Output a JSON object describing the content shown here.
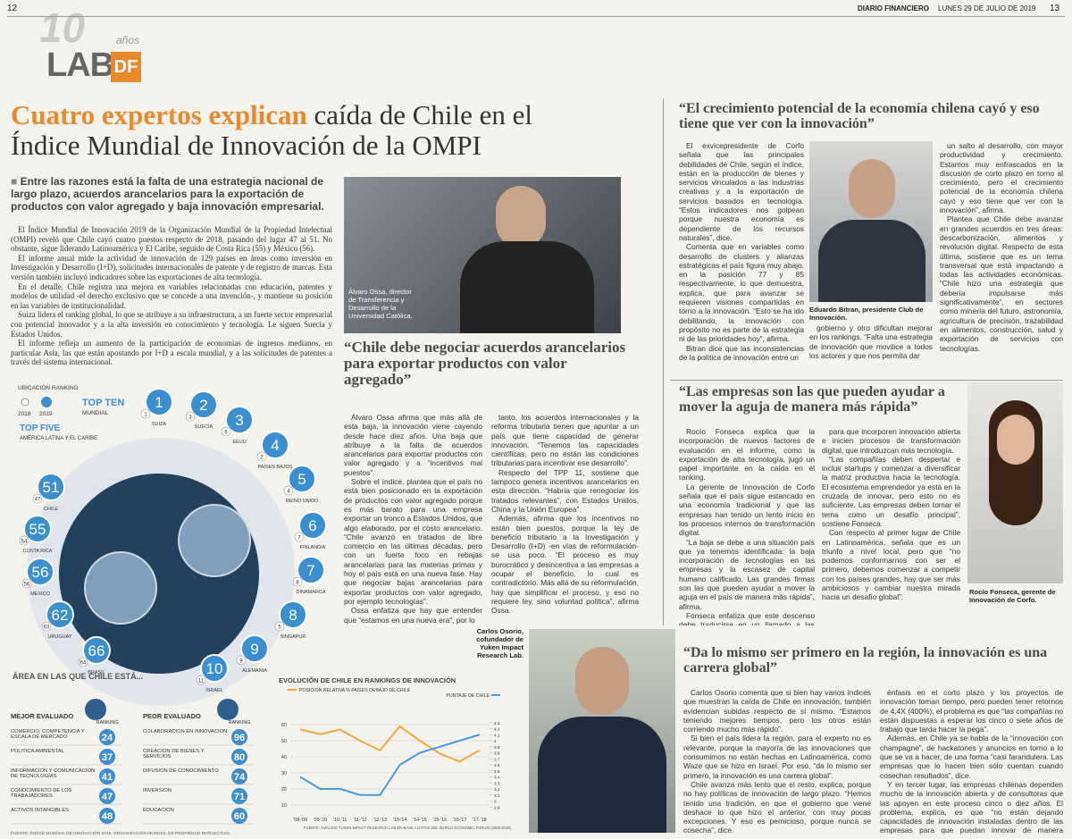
{
  "header": {
    "page_left": "12",
    "logo_years": "10",
    "logo_years_word": "años",
    "logo_lab": "LAB",
    "logo_df": "DF",
    "paper": "DIARIO FINANCIERO",
    "date": "LUNES 29 DE JULIO DE 2019",
    "page_right": "13"
  },
  "main": {
    "title_accent": "Cuatro expertos explican",
    "title_rest": "caída de Chile en el Índice Mundial de Innovación de la OMPI",
    "lead": "Entre las razones está la falta de una estrategia nacional de largo plazo, acuerdos arancelarios para la exportación de productos con valor agregado y baja innovación empresarial.",
    "body": [
      "El Índice Mundial de Innovación 2019 de la Organización Mundial de la Propiedad Intelectual (OMPI) reveló que Chile cayó cuatro puestos respecto de 2018, pasando del lugar 47 al 51. No obstante, sigue liderando Latinoamérica y El Caribe, seguido de Costa Rica (55) y México (56).",
      "El informe anual mide la actividad de innovación de 129 países en áreas como inversión en Investigación y Desarrollo (I+D), solicitudes internacionales de patente y de registro de marcas. Esta versión también incluyó indicadores sobre las exportaciones de alta tecnología.",
      "En el detalle, Chile registra una mejora en variables relacionadas con educación, patentes y modelos de utilidad -el derecho exclusivo que se concede a una invención-, y mantiene su posición en las variables de institucionalidad.",
      "Suiza lidera el ranking global, lo que se atribuye a su infraestructura, a un fuerte sector empresarial con potencial innovador y a la alta inversión en conocimiento y tecnología. Le siguen Suecia y Estados Unidos.",
      "El informe refleja un aumento de la participación de economías de ingresos medianos, en particular Asia, las que están apostando por I+D a escala mundial, y a las solicitudes de patentes a través del sistema internacional."
    ]
  },
  "ossa": {
    "caption": "Álvaro Ossa, director de Transferencia y Desarrollo de la Universidad Católica.",
    "quote": "“Chile debe negociar acuerdos arancelarios para exportar productos con valor agregado”",
    "col1": [
      "Álvaro Ossa afirma que más allá de esta baja, la innovación viene cayendo desde hace diez años. Una baja que atribuye a la falta de acuerdos arancelarios para exportar productos con valor agregado y a “incentivos mal puestos”.",
      "Sobre el índice, plantea que el país no está bien posicionado en la exportación de productos con valor agregado porque es más barato para una empresa exportar un tronco a Estados Unidos, que algo elaborado, por el costo arancelario. “Chile avanzó en tratados de libre comercio en las últimas décadas, pero con un fuerte foco en rebajas arancelarias para las materias primas y hoy el país está en una nueva fase. Hay que negociar bajas arancelarias para exportar productos con valor agregado, por ejemplo tecnologías”.",
      "Ossa enfatiza que hay que entender que “estamos en una nueva era”, por lo"
    ],
    "col2": [
      "tanto, los acuerdos internacionales y la reforma tributaria tienen que apuntar a un país que tiene capacidad de generar innovación. “Tenemos las capacidades científicas, pero no están las condiciones tributarias para incentivar ese desarrollo”.",
      "Respecto del TPP 11, sostiene que tampoco genera incentivos arancelarios en esta dirección. “Habría que renegociar los tratados relevantes”, con Estados Unidos, China y la Unión Europea”.",
      "Además, afirma que los incentivos no están bien puestos, porque la ley de beneficio tributario a la Investigación y Desarrollo (I+D) -en vías de reformulación- se usa poco. “El proceso es muy burocrático y desincentiva a las empresas a ocupar el beneficio, lo cual es contradictorio. Más allá de su reformulación, hay que simplificar el proceso, y eso no requiere ley, sino voluntad política”, afirma Ossa."
    ]
  },
  "bitran": {
    "quote": "“El crecimiento potencial de la economía chilena cayó y eso tiene que ver con la innovación”",
    "caption": "Eduardo Bitran, presidente Club de Innovación.",
    "col1": [
      "El exvicepresidente de Corfo señala que las principales debilidades de Chile, según el índice, están en la producción de bienes y servicios vinculados a las industrias creativas y a la exportación de servicios basados en tecnología. “Estos indicadores nos golpean porque nuestra economía es dependiente de los recursos naturales”, dice.",
      "Comenta que en variables como desarrollo de clusters y alianzas estratégicas el país figura muy abajo, en la posición 77 y 85 respectivamente, lo que demuestra, explica, que para avanzar se requieren visiones compartidas en torno a la innovación. “Esto se ha ido debilitando, la innovación con propósito no es parte de la estrategia ni de las prioridades hoy”, afirma.",
      "Bitran dice que las inconsistencias de la política de innovación entre un"
    ],
    "col2": [
      "gobierno y otro dificultan mejorar en los rankings. “Falta una estrategia de innovación que movilice a todos los actores y que nos permita dar"
    ],
    "col3": [
      "un salto al desarrollo, con mayor productividad y crecimiento. Estamos muy enfrascados en la discusión de corto plazo en torno al crecimiento, pero el crecimiento potencial de la economía chilena cayó y eso tiene que ver con la innovación”, afirma.",
      "Plantea que Chile debe avanzar en grandes acuerdos en tres áreas: descarbonización, alimentos y revolución digital. Respecto de esta última, sostiene que es un tema transversal que está impactando a todas las actividades económicas. “Chile hizo una estrategia que debería impulsarse más significativamente”, en sectores como minería del futuro, astronomía, agricultura de precisión, trazabilidad en alimentos, construcción, salud y exportación de servicios con tecnologías."
    ]
  },
  "fonseca": {
    "quote": "“Las empresas son las que pueden ayudar a mover la aguja de manera más rápida”",
    "caption": "Rocío Fonseca, gerente de Innovación de Corfo.",
    "col1": [
      "Rocío Fonseca explica que la incorporación de nuevos factores de evaluación en el informe, como la exportación de alta tecnología, jugó un papel importante en la caída en el ranking.",
      "La gerente de Innovación de Corfo señala que el país sigue estancado en una economía tradicional y que las empresas han tenido un lento inicio en los procesos internos de transformación digital.",
      "“La baja se debe a una situación país que ya tenemos identificada: la baja incorporación de tecnologías en las empresas y la escasez de capital humano calificado. Las grandes firmas son las que pueden ayudar a mover la aguja en el país de manera más rápida”, afirma.",
      "Fonseca enfatiza que este descenso debe traducirse en un llamado a las empresas"
    ],
    "col2": [
      "para que incorporen innovación abierta e inicien procesos de transformación digital, que introduzcan más tecnología.",
      "“Las compañías deben despertar e incluir startups y comenzar a diversificar la matriz productiva hacia la tecnología. El ecosistema emprendedor ya está en la cruzada de innovar, pero esto no es suficiente. Las empresas deben tomar el tema como un desafío principal”, sostiene Fonseca.",
      "Con respecto al primer lugar de Chile en Latinoamérica, señala que es un triunfo a nivel local, pero que “no podemos conformarnos con ser el primero, debemos comenzar a competir con los países grandes, hay que ser más ambiciosos y cambiar nuestra mirada hacia un desafío global”."
    ]
  },
  "osorio": {
    "quote": "“Da lo mismo ser primero en la región, la innovación es una carrera global”",
    "caption": "Carlos Osorio, cofundador de Yuken Impact Research Lab.",
    "col1": [
      "Carlos Osorio comenta que si bien hay varios índices que muestran la caída de Chile en innovación, también evidencian subidas respecto de sí mismo. “Estamos teniendo mejores tiempos, pero los otros están corriendo mucho más rápido”.",
      "Si bien el país lidera la región, para el experto no es relevante, porque la mayoría de las innovaciones que consumimos no están hechas en Latinoamérica, como Waze que se hizo en Israel. Por eso, “da lo mismo ser primero, la innovación es una carrera global”.",
      "Chile avanza más lento que el resto, explica, porque no hay políticas de innovación de largo plazo. “Hemos tenido una tradición, en que el gobierno que viene deshace lo que hizo el anterior, con muy pocas excepciones. Y eso es pernicioso, porque nunca se cosecha”, dice.",
      "En segundo lugar, afirma que las empresas ponen demasiado"
    ],
    "col2": [
      "énfasis en el corto plazo y los proyectos de innovación toman tiempo, pero pueden tener retornos de 4,4X (400%), el problema es que “las compañías no están dispuestas a esperar los cinco o siete años de trabajo que tarda hacer la pega”.",
      "Además, en Chile ya se habla de la “innovación con champagne”, de hackatones y anuncios en torno a lo que se va a hacer, de una forma “casi farandulera. Las empresas que lo hacen bien sólo cuentan cuando cosechan resultados”, dice.",
      "Y en tercer lugar, las empresas chilenas dependen mucho de la innovación abierta y de consultoras que las apoyen en este proceso cinco o diez años. El problema, explica, es que “no están dejando capacidades de innovación instaladas dentro de las empresas para que puedan innovar de manera autónoma”, afirma Osorio."
    ]
  },
  "infographic": {
    "legend_title": "UBICACIÓN RANKING",
    "legend_2018": "2018",
    "legend_2019": "2019",
    "top_ten_title": "TOP TEN",
    "top_ten_subtitle": "MUNDIAL",
    "latam_title": "TOP FIVE",
    "latam_subtitle": "AMÉRICA LATINA Y EL CARIBE",
    "top_ten": [
      {
        "country": "SUIZA",
        "rank_2019": 1,
        "rank_2018": 1
      },
      {
        "country": "SUECIA",
        "rank_2019": 2,
        "rank_2018": 3
      },
      {
        "country": "EEUU",
        "rank_2019": 3,
        "rank_2018": 6
      },
      {
        "country": "PAÍSES BAJOS",
        "rank_2019": 4,
        "rank_2018": 2
      },
      {
        "country": "REINO UNIDO",
        "rank_2019": 5,
        "rank_2018": 4
      },
      {
        "country": "FINLANDIA",
        "rank_2019": 6,
        "rank_2018": 7
      },
      {
        "country": "DINAMARCA",
        "rank_2019": 7,
        "rank_2018": 8
      },
      {
        "country": "SINGAPUR",
        "rank_2019": 8,
        "rank_2018": 5
      },
      {
        "country": "ALEMANIA",
        "rank_2019": 9,
        "rank_2018": 9
      },
      {
        "country": "ISRAEL",
        "rank_2019": 10,
        "rank_2018": 11
      }
    ],
    "latam": [
      {
        "country": "CHILE",
        "rank_2019": 51,
        "rank_2018": 47
      },
      {
        "country": "COSTA RICA",
        "rank_2019": 55,
        "rank_2018": 54
      },
      {
        "country": "MÉXICO",
        "rank_2019": 56,
        "rank_2018": 56
      },
      {
        "country": "URUGUAY",
        "rank_2019": 62,
        "rank_2018": 63
      },
      {
        "country": "BRASIL",
        "rank_2019": 66,
        "rank_2018": 64
      }
    ],
    "areas_title": "ÁREA EN LAS QUE CHILE ESTÁ...",
    "best_title": "MEJOR EVALUADO",
    "worst_title": "PEOR EVALUADO",
    "best_ranking_label": "RANKING",
    "worst_ranking_label": "RANKING",
    "best": [
      {
        "label": "COMERCIO, COMPETENCIA Y ESCALA DE MERCADO",
        "rank": 24
      },
      {
        "label": "POLÍTICA AMBIENTAL",
        "rank": 37
      },
      {
        "label": "INFORMACIÓN Y COMUNICACIÓN DE TECNOLOGÍAS",
        "rank": 41
      },
      {
        "label": "CONOCIMIENTO DE LOS TRABAJADORES",
        "rank": 47
      },
      {
        "label": "ACTIVOS INTANGIBLES",
        "rank": 48
      }
    ],
    "worst": [
      {
        "label": "COLABORACIÓN EN INNOVACIÓN",
        "rank": 96
      },
      {
        "label": "CREACIÓN DE BIENES Y SERVICIOS",
        "rank": 80
      },
      {
        "label": "DIFUSIÓN DE CONOCIMIENTO",
        "rank": 74
      },
      {
        "label": "INVERSIÓN",
        "rank": 71
      },
      {
        "label": "EDUCACIÓN",
        "rank": 60
      }
    ],
    "source": "FUENTE: ÍNDICE MUNDIAL DE INNOVACIÓN 2019. ORGANIZACIÓN MUNDIAL DE PROPIEDAD INTELECTUAL"
  },
  "line_chart": {
    "type": "line",
    "title": "EVOLUCIÓN DE CHILE EN RANKINGS DE INNOVACIÓN",
    "categories": [
      "'08-'09",
      "'09-'10",
      "'10-'11",
      "'11-'12",
      "'12-'13",
      "'13-'14",
      "'14-'15",
      "'15-'16",
      "'16-'17",
      "'17-'18"
    ],
    "series": [
      {
        "name": "POSICIÓN RELATIVA % PAÍSES DEBAJO DE CHILE",
        "color": "#f0a838",
        "values": [
          57,
          54,
          57,
          50,
          44,
          59,
          50,
          42,
          37,
          44
        ]
      },
      {
        "name": "PUNTAJE DE CHILE",
        "color": "#4a9ad8",
        "axis": "y2",
        "values": [
          3.4,
          3.2,
          3.2,
          3.1,
          3.1,
          3.6,
          3.8,
          3.9,
          4.0,
          4.1
        ]
      }
    ],
    "ylim": [
      5,
      65
    ],
    "yticks": [
      10,
      20,
      30,
      40,
      50,
      60
    ],
    "y2lim": [
      2.8,
      4.4
    ],
    "y2ticks": [
      2.9,
      3.0,
      3.1,
      3.2,
      3.3,
      3.4,
      3.5,
      3.6,
      3.7,
      3.8,
      3.9,
      4.0,
      4.1,
      4.2,
      4.3
    ],
    "source": "FUENTE: ANÁLISIS YUKEN IMPACT RESEARCH LAB EN BASE A DATOS DEL WORLD ECONOMIC FORUM (2008-2018)"
  }
}
